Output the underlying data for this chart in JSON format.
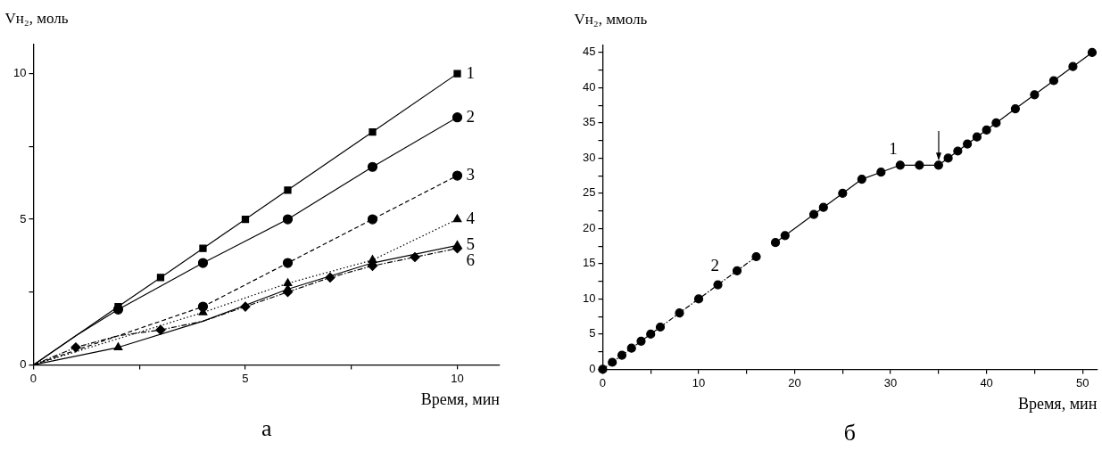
{
  "chart_data": [
    {
      "type": "line",
      "title": "а",
      "xlabel": "Время, мин",
      "ylabel": "Vн₂, моль",
      "xlim": [
        0,
        11
      ],
      "ylim": [
        0,
        11
      ],
      "xticks": [
        0,
        {
          "value": 2.5,
          "label": null
        },
        5,
        {
          "value": 7.5,
          "label": null
        },
        10
      ],
      "yticks": [
        0,
        {
          "value": 2.5,
          "label": null
        },
        5,
        {
          "value": 7.5,
          "label": null
        },
        10
      ],
      "grid": false,
      "legend": false,
      "series": [
        {
          "name": "1",
          "color": "#000000",
          "marker": "square",
          "line_style": "solid",
          "x": [
            0,
            1,
            2,
            3,
            4,
            5,
            6,
            8,
            10
          ],
          "values": [
            0,
            1,
            2,
            3,
            4,
            5,
            6,
            8,
            10
          ]
        },
        {
          "name": "2",
          "color": "#000000",
          "marker": "circle",
          "line_style": "solid",
          "x": [
            0,
            1,
            2,
            4,
            6,
            8,
            10
          ],
          "values": [
            0,
            1,
            1.9,
            3.5,
            5,
            6.8,
            8.5
          ]
        },
        {
          "name": "3",
          "color": "#000000",
          "marker": "circle",
          "line_style": "dashed",
          "x": [
            0,
            2,
            4,
            6,
            8,
            10
          ],
          "values": [
            0,
            1,
            2,
            3.5,
            5,
            6.5
          ]
        },
        {
          "name": "4",
          "color": "#000000",
          "marker": "triangle",
          "line_style": "dotted",
          "x": [
            0,
            4,
            6,
            8,
            10
          ],
          "values": [
            0,
            1.8,
            2.8,
            3.6,
            5
          ]
        },
        {
          "name": "5",
          "color": "#000000",
          "marker": "triangle",
          "line_style": "solid",
          "x": [
            0,
            2,
            4,
            6,
            8,
            10
          ],
          "values": [
            0,
            0.6,
            1.5,
            2.6,
            3.5,
            4.1
          ]
        },
        {
          "name": "6",
          "color": "#000000",
          "marker": "diamond",
          "line_style": "dashdot",
          "x": [
            0,
            1,
            2,
            3,
            4,
            5,
            6,
            7,
            8,
            9,
            10
          ],
          "values": [
            0,
            0.6,
            1,
            1.2,
            1.5,
            2,
            2.5,
            3,
            3.4,
            3.7,
            4
          ]
        }
      ]
    },
    {
      "type": "line",
      "title": "б",
      "xlabel": "Время, мин",
      "ylabel": "Vн₂, ммоль",
      "xlim": [
        0,
        51.5
      ],
      "ylim": [
        0,
        46
      ],
      "xticks": [
        0,
        {
          "value": 5,
          "label": null
        },
        10,
        {
          "value": 15,
          "label": null
        },
        20,
        {
          "value": 25,
          "label": null
        },
        30,
        {
          "value": 35,
          "label": null
        },
        40,
        {
          "value": 45,
          "label": null
        },
        50
      ],
      "yticks": [
        0,
        {
          "value": 2.5,
          "label": null
        },
        5,
        {
          "value": 7.5,
          "label": null
        },
        10,
        {
          "value": 12.5,
          "label": null
        },
        15,
        {
          "value": 17.5,
          "label": null
        },
        20,
        {
          "value": 22.5,
          "label": null
        },
        25,
        {
          "value": 27.5,
          "label": null
        },
        30,
        {
          "value": 32.5,
          "label": null
        },
        35,
        {
          "value": 37.5,
          "label": null
        },
        40,
        {
          "value": 42.5,
          "label": null
        },
        45
      ],
      "grid": false,
      "legend": false,
      "annotations": [
        "1",
        "2"
      ],
      "series": [
        {
          "color": "#000000",
          "marker": "circle",
          "line_style": "solid",
          "x": [
            18,
            19,
            22,
            23,
            25,
            27,
            29,
            31,
            33,
            35,
            36,
            37,
            38,
            39,
            40,
            41,
            43,
            45,
            47,
            49,
            51
          ],
          "values": [
            18,
            19,
            22,
            23,
            25,
            27,
            28,
            29,
            29,
            29,
            30,
            31,
            32,
            33,
            34,
            35,
            37,
            39,
            41,
            43,
            45
          ]
        },
        {
          "color": "#000000",
          "marker": "circle",
          "line_style": "dashdot",
          "x": [
            0,
            1,
            2,
            3,
            4,
            5,
            6,
            8,
            10,
            12,
            14,
            16
          ],
          "values": [
            0,
            1,
            2,
            3,
            4,
            5,
            6,
            8,
            10,
            12,
            14,
            16
          ]
        }
      ]
    }
  ]
}
